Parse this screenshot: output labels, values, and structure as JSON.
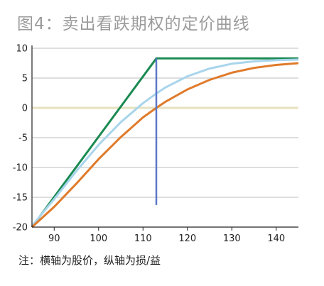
{
  "figure": {
    "title": "图4：卖出看跌期权的定价曲线",
    "note": "注：横轴为股价，纵轴为损/益"
  },
  "chart_data": {
    "type": "line",
    "xlim": [
      85,
      145
    ],
    "ylim": [
      -20,
      10
    ],
    "x_ticks": [
      90,
      100,
      110,
      120,
      130,
      140
    ],
    "y_ticks": [
      10,
      5,
      0,
      -5,
      -10,
      -15,
      -20
    ],
    "x_tick_labels": [
      "90",
      "100",
      "110",
      "120",
      "130",
      "140"
    ],
    "y_tick_labels": [
      "10",
      "5",
      "0",
      "-5",
      "-10",
      "-15",
      "-20"
    ],
    "grid": "horizontal",
    "legend": "none",
    "series": [
      {
        "key": "expiry_payoff",
        "color": "#1a8a52",
        "x": [
          85,
          113,
          145
        ],
        "y": [
          -20,
          8.3,
          8.3
        ]
      },
      {
        "key": "short_term",
        "color": "#a9d5ec",
        "x": [
          85,
          90,
          95,
          100,
          105,
          110,
          113,
          115,
          120,
          125,
          130,
          135,
          140,
          145
        ],
        "y": [
          -19.8,
          -15.3,
          -10.6,
          -6.2,
          -2.4,
          0.8,
          2.4,
          3.4,
          5.3,
          6.6,
          7.4,
          7.8,
          8.0,
          8.1
        ]
      },
      {
        "key": "long_term",
        "color": "#e07b2b",
        "x": [
          85,
          90,
          95,
          100,
          105,
          110,
          113,
          115,
          120,
          125,
          130,
          135,
          140,
          145
        ],
        "y": [
          -20.0,
          -16.6,
          -12.7,
          -8.6,
          -4.9,
          -1.6,
          0.0,
          1.0,
          3.1,
          4.7,
          5.9,
          6.7,
          7.2,
          7.5
        ]
      },
      {
        "key": "zero_line",
        "color": "#e6e2bf",
        "x": [
          85,
          145
        ],
        "y": [
          0,
          0
        ]
      }
    ],
    "strike_marker": {
      "color": "#5b78c8",
      "x": 113,
      "y_range": [
        -16.3,
        8.3
      ]
    }
  },
  "colors": {
    "axis": "#222222",
    "grid": "#bdbdbd"
  }
}
